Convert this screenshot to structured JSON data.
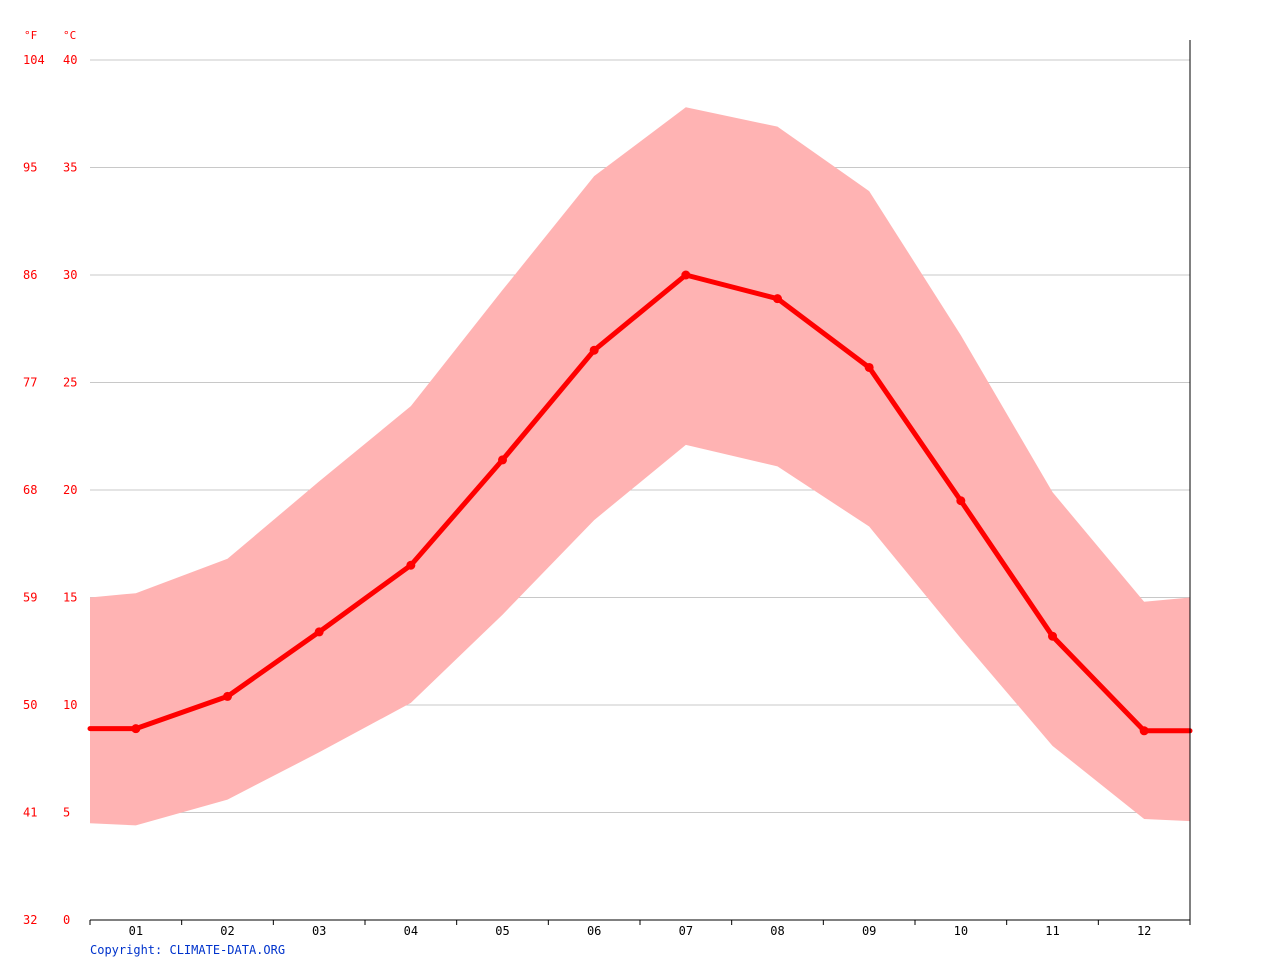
{
  "chart_data": {
    "type": "line",
    "units": {
      "fahrenheit": "°F",
      "celsius": "°C"
    },
    "categories": [
      "01",
      "02",
      "03",
      "04",
      "05",
      "06",
      "07",
      "08",
      "09",
      "10",
      "11",
      "12"
    ],
    "ylim": [
      0,
      40
    ],
    "celsius_ticks": [
      0,
      5,
      10,
      15,
      20,
      25,
      30,
      35,
      40
    ],
    "fahrenheit_ticks": [
      "32",
      "41",
      "50",
      "59",
      "68",
      "77",
      "86",
      "95",
      "104"
    ],
    "grid": true,
    "series": [
      {
        "values": [
          8.9,
          10.4,
          13.4,
          16.5,
          21.4,
          26.5,
          30.0,
          28.9,
          25.7,
          19.5,
          13.2,
          8.8
        ]
      }
    ],
    "range": {
      "min": [
        4.4,
        5.6,
        7.8,
        10.1,
        14.2,
        18.6,
        22.1,
        21.1,
        18.3,
        13.1,
        8.1,
        4.7
      ],
      "max": [
        15.2,
        16.8,
        20.4,
        23.9,
        29.3,
        34.6,
        37.8,
        36.9,
        33.9,
        27.2,
        19.9,
        14.8
      ]
    },
    "colors": {
      "line": "#ff0000",
      "band": "#ffb3b3",
      "grid": "#c8c8c8",
      "axis_labels": "#ff0000",
      "tick_text": "#000000"
    }
  },
  "footer": {
    "copyright": "Copyright: CLIMATE-DATA.ORG"
  },
  "colors": {
    "copyright": "#0033cc"
  }
}
